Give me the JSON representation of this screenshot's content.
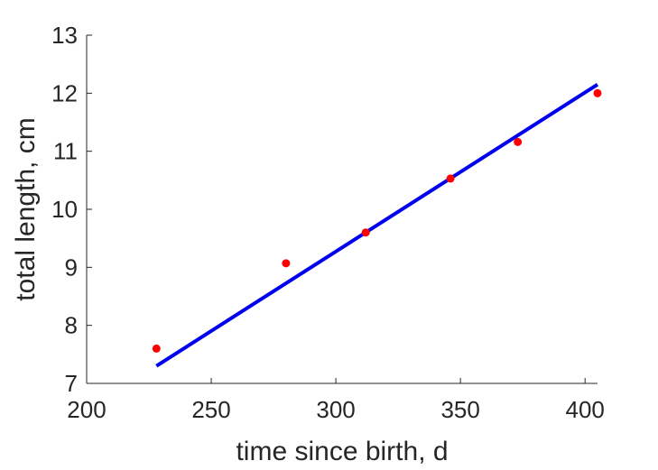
{
  "chart_data": {
    "type": "scatter",
    "xlabel": "time since birth, d",
    "ylabel": "total length, cm",
    "xlim": [
      200,
      405
    ],
    "ylim": [
      7,
      13
    ],
    "x_ticks": [
      "200",
      "250",
      "300",
      "350",
      "400"
    ],
    "y_ticks": [
      "7",
      "8",
      "9",
      "10",
      "11",
      "12",
      "13"
    ],
    "grid": false,
    "series": [
      {
        "type": "scatter",
        "color": "#ff0000",
        "points": [
          {
            "x": 228,
            "y": 7.6
          },
          {
            "x": 280,
            "y": 9.07
          },
          {
            "x": 312,
            "y": 9.6
          },
          {
            "x": 346,
            "y": 10.53
          },
          {
            "x": 373,
            "y": 11.16
          },
          {
            "x": 405,
            "y": 12.0
          }
        ]
      },
      {
        "type": "line",
        "color": "#0000ee",
        "points": [
          {
            "x": 228,
            "y": 7.3
          },
          {
            "x": 405,
            "y": 12.15
          }
        ]
      }
    ]
  }
}
